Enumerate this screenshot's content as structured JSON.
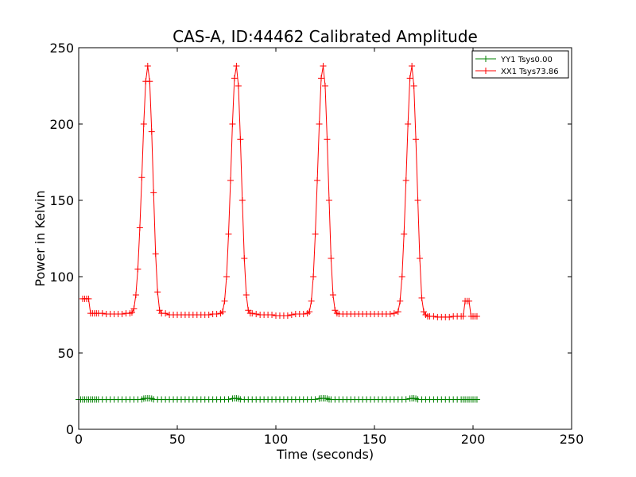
{
  "chart_data": {
    "type": "line",
    "title": "CAS-A, ID:44462 Calibrated Amplitude",
    "xlabel": "Time (seconds)",
    "ylabel": "Power in Kelvin",
    "xlim": [
      0,
      250
    ],
    "ylim": [
      0,
      250
    ],
    "xticks": [
      0,
      50,
      100,
      150,
      200,
      250
    ],
    "yticks": [
      0,
      50,
      100,
      150,
      200,
      250
    ],
    "xtick_labels": [
      "0",
      "50",
      "100",
      "150",
      "200",
      "250"
    ],
    "ytick_labels": [
      "0",
      "50",
      "100",
      "150",
      "200",
      "250"
    ],
    "grid": false,
    "legend_position": "top-right",
    "series": [
      {
        "name": "YY1 Tsys0.00",
        "color": "#008000",
        "marker": "plus",
        "x": [
          0,
          1,
          2,
          3,
          4,
          5,
          6,
          7,
          8,
          9,
          10,
          12,
          14,
          16,
          18,
          20,
          22,
          24,
          26,
          28,
          30,
          32,
          33,
          34,
          35,
          36,
          37,
          38,
          40,
          42,
          44,
          46,
          48,
          50,
          52,
          54,
          56,
          58,
          60,
          62,
          64,
          66,
          68,
          70,
          72,
          74,
          76,
          78,
          79,
          80,
          81,
          82,
          84,
          86,
          88,
          90,
          92,
          94,
          96,
          98,
          100,
          102,
          104,
          106,
          108,
          110,
          112,
          114,
          116,
          118,
          120,
          122,
          123,
          124,
          125,
          126,
          127,
          128,
          130,
          132,
          134,
          136,
          138,
          140,
          142,
          144,
          146,
          148,
          150,
          152,
          154,
          156,
          158,
          160,
          162,
          164,
          166,
          168,
          169,
          170,
          171,
          172,
          174,
          176,
          178,
          180,
          182,
          184,
          186,
          188,
          190,
          192,
          194,
          195,
          196,
          197,
          198,
          199,
          200,
          201,
          202
        ],
        "y": [
          19.5,
          19.5,
          19.5,
          19.5,
          19.5,
          19.5,
          19.5,
          19.5,
          19.5,
          19.5,
          19.5,
          19.5,
          19.5,
          19.5,
          19.5,
          19.5,
          19.5,
          19.5,
          19.5,
          19.5,
          19.5,
          19.6,
          20.1,
          20.3,
          20.3,
          20.3,
          20.1,
          19.6,
          19.5,
          19.5,
          19.5,
          19.5,
          19.5,
          19.5,
          19.5,
          19.5,
          19.5,
          19.5,
          19.5,
          19.5,
          19.5,
          19.5,
          19.5,
          19.5,
          19.5,
          19.5,
          19.6,
          20.1,
          20.3,
          20.3,
          20.1,
          19.6,
          19.5,
          19.5,
          19.5,
          19.5,
          19.5,
          19.5,
          19.5,
          19.5,
          19.5,
          19.5,
          19.5,
          19.5,
          19.5,
          19.5,
          19.5,
          19.5,
          19.5,
          19.5,
          19.6,
          20.1,
          20.3,
          20.3,
          20.3,
          20.1,
          19.6,
          19.5,
          19.5,
          19.5,
          19.5,
          19.5,
          19.5,
          19.5,
          19.5,
          19.5,
          19.5,
          19.5,
          19.5,
          19.5,
          19.5,
          19.5,
          19.5,
          19.5,
          19.5,
          19.5,
          19.6,
          20.1,
          20.3,
          20.3,
          20.1,
          19.6,
          19.5,
          19.5,
          19.5,
          19.5,
          19.5,
          19.5,
          19.5,
          19.5,
          19.5,
          19.5,
          19.5,
          19.5,
          19.5,
          19.5,
          19.5,
          19.5,
          19.5,
          19.5,
          19.5
        ]
      },
      {
        "name": "XX1 Tsys73.86",
        "color": "#ff0000",
        "marker": "plus",
        "x": [
          2,
          3,
          4,
          5,
          6,
          7,
          8,
          9,
          10,
          12,
          14,
          16,
          18,
          20,
          22,
          24,
          26,
          27,
          28,
          29,
          30,
          31,
          32,
          33,
          34,
          35,
          36,
          37,
          38,
          39,
          40,
          41,
          42,
          44,
          46,
          48,
          50,
          52,
          54,
          56,
          58,
          60,
          62,
          64,
          66,
          68,
          70,
          72,
          73,
          74,
          75,
          76,
          77,
          78,
          79,
          80,
          81,
          82,
          83,
          84,
          85,
          86,
          87,
          88,
          90,
          92,
          94,
          96,
          98,
          100,
          102,
          104,
          106,
          108,
          110,
          112,
          114,
          116,
          117,
          118,
          119,
          120,
          121,
          122,
          123,
          124,
          125,
          126,
          127,
          128,
          129,
          130,
          131,
          132,
          134,
          136,
          138,
          140,
          142,
          144,
          146,
          148,
          150,
          152,
          154,
          156,
          158,
          160,
          162,
          163,
          164,
          165,
          166,
          167,
          168,
          169,
          170,
          171,
          172,
          173,
          174,
          175,
          176,
          177,
          178,
          180,
          182,
          184,
          186,
          188,
          190,
          192,
          194,
          195,
          196,
          197,
          198,
          199,
          200,
          201,
          202
        ],
        "y": [
          85.5,
          85.5,
          85.5,
          85.5,
          76,
          76,
          76,
          76,
          76,
          76,
          75.5,
          75.5,
          75.5,
          75.5,
          75.5,
          76,
          76,
          76.5,
          79,
          88,
          105,
          132,
          165,
          200,
          228,
          238,
          228,
          195,
          155,
          115,
          90,
          78,
          76,
          76,
          75,
          75,
          75,
          75,
          75,
          75,
          75,
          75,
          75,
          75,
          75,
          75.5,
          75.5,
          76,
          77,
          84,
          100,
          128,
          163,
          200,
          230,
          238,
          225,
          190,
          150,
          112,
          88,
          78,
          76,
          76,
          75.5,
          75,
          75,
          75,
          75,
          74.5,
          74.5,
          74.5,
          74.5,
          75,
          75.5,
          75.5,
          75.5,
          76,
          77,
          84,
          100,
          128,
          163,
          200,
          230,
          238,
          225,
          190,
          150,
          112,
          88,
          78,
          76,
          75.5,
          75.5,
          75.5,
          75.5,
          75.5,
          75.5,
          75.5,
          75.5,
          75.5,
          75.5,
          75.5,
          75.5,
          75.5,
          75.5,
          76,
          77,
          84,
          100,
          128,
          163,
          200,
          230,
          238,
          225,
          190,
          150,
          112,
          86,
          77,
          75,
          74,
          74,
          74,
          73.5,
          73.5,
          73.5,
          73.5,
          74,
          74,
          74,
          74,
          84,
          84,
          84,
          74,
          74,
          74,
          74
        ]
      }
    ]
  }
}
